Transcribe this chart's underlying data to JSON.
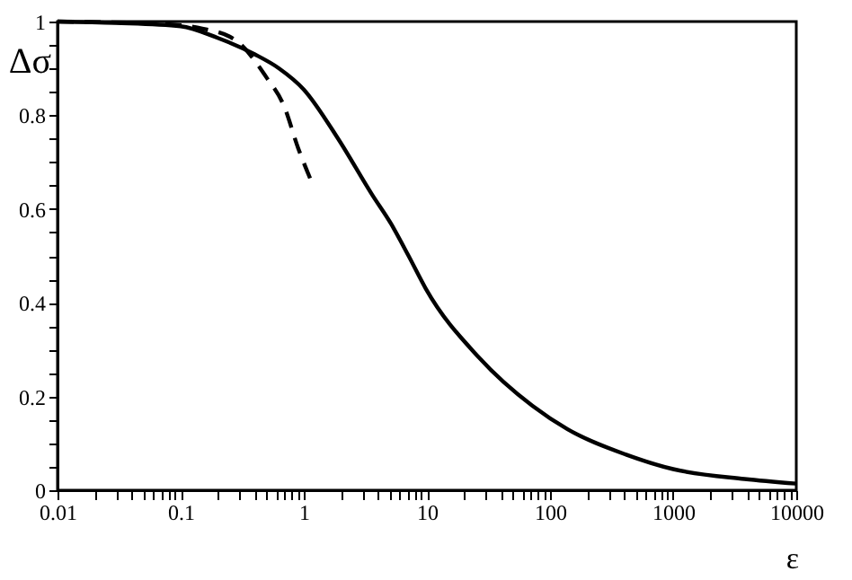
{
  "chart_data": {
    "type": "line",
    "xlabel": "ε",
    "ylabel": "Δσ",
    "log": "x",
    "grid": false,
    "marker": "none",
    "xlim": [
      0.01,
      10000
    ],
    "ylim": [
      0,
      1
    ],
    "xticks": [
      0.01,
      {
        "value": 0.02,
        "label": null
      },
      {
        "value": 0.03,
        "label": null
      },
      {
        "value": 0.04,
        "label": null
      },
      {
        "value": 0.05,
        "label": null
      },
      {
        "value": 0.06,
        "label": null
      },
      {
        "value": 0.07,
        "label": null
      },
      {
        "value": 0.08,
        "label": null
      },
      {
        "value": 0.09,
        "label": null
      },
      0.1,
      {
        "value": 0.2,
        "label": null
      },
      {
        "value": 0.3,
        "label": null
      },
      {
        "value": 0.4,
        "label": null
      },
      {
        "value": 0.5,
        "label": null
      },
      {
        "value": 0.6,
        "label": null
      },
      {
        "value": 0.7,
        "label": null
      },
      {
        "value": 0.8,
        "label": null
      },
      {
        "value": 0.9,
        "label": null
      },
      1,
      {
        "value": 2,
        "label": null
      },
      {
        "value": 3,
        "label": null
      },
      {
        "value": 4,
        "label": null
      },
      {
        "value": 5,
        "label": null
      },
      {
        "value": 6,
        "label": null
      },
      {
        "value": 7,
        "label": null
      },
      {
        "value": 8,
        "label": null
      },
      {
        "value": 9,
        "label": null
      },
      10,
      {
        "value": 20,
        "label": null
      },
      {
        "value": 30,
        "label": null
      },
      {
        "value": 40,
        "label": null
      },
      {
        "value": 50,
        "label": null
      },
      {
        "value": 60,
        "label": null
      },
      {
        "value": 70,
        "label": null
      },
      {
        "value": 80,
        "label": null
      },
      {
        "value": 90,
        "label": null
      },
      100,
      {
        "value": 200,
        "label": null
      },
      {
        "value": 300,
        "label": null
      },
      {
        "value": 400,
        "label": null
      },
      {
        "value": 500,
        "label": null
      },
      {
        "value": 600,
        "label": null
      },
      {
        "value": 700,
        "label": null
      },
      {
        "value": 800,
        "label": null
      },
      {
        "value": 900,
        "label": null
      },
      1000,
      {
        "value": 2000,
        "label": null
      },
      {
        "value": 3000,
        "label": null
      },
      {
        "value": 4000,
        "label": null
      },
      {
        "value": 5000,
        "label": null
      },
      {
        "value": 6000,
        "label": null
      },
      {
        "value": 7000,
        "label": null
      },
      {
        "value": 8000,
        "label": null
      },
      {
        "value": 9000,
        "label": null
      },
      10000
    ],
    "yticks": [
      0,
      {
        "value": 0.05,
        "label": null
      },
      {
        "value": 0.1,
        "label": null
      },
      {
        "value": 0.15,
        "label": null
      },
      0.2,
      {
        "value": 0.25,
        "label": null
      },
      {
        "value": 0.3,
        "label": null
      },
      {
        "value": 0.35,
        "label": null
      },
      0.4,
      {
        "value": 0.45,
        "label": null
      },
      {
        "value": 0.5,
        "label": null
      },
      {
        "value": 0.55,
        "label": null
      },
      0.6,
      {
        "value": 0.65,
        "label": null
      },
      {
        "value": 0.7,
        "label": null
      },
      {
        "value": 0.75,
        "label": null
      },
      0.8,
      {
        "value": 0.85,
        "label": null
      },
      {
        "value": 0.9,
        "label": null
      },
      {
        "value": 0.95,
        "label": null
      },
      1
    ],
    "series": [
      {
        "color": "#000000",
        "line_style": "solid",
        "x": [
          0.01,
          0.03,
          0.1,
          0.2,
          0.4,
          0.63,
          1.0,
          1.9,
          3.6,
          5.1,
          7.1,
          9.8,
          26.5,
          72,
          139,
          415,
          1000,
          3800,
          10000
        ],
        "values": [
          1.0,
          0.997,
          0.99,
          0.965,
          0.93,
          0.9,
          0.855,
          0.75,
          0.63,
          0.569,
          0.5,
          0.43,
          0.283,
          0.18,
          0.13,
          0.076,
          0.045,
          0.024,
          0.014
        ]
      },
      {
        "color": "#000000",
        "line_style": "dashed",
        "x": [
          0.01,
          0.068,
          0.15,
          0.28,
          0.5,
          0.69,
          0.9,
          1.17
        ],
        "values": [
          1.0,
          0.995,
          0.985,
          0.96,
          0.88,
          0.82,
          0.73,
          0.655
        ]
      }
    ]
  }
}
